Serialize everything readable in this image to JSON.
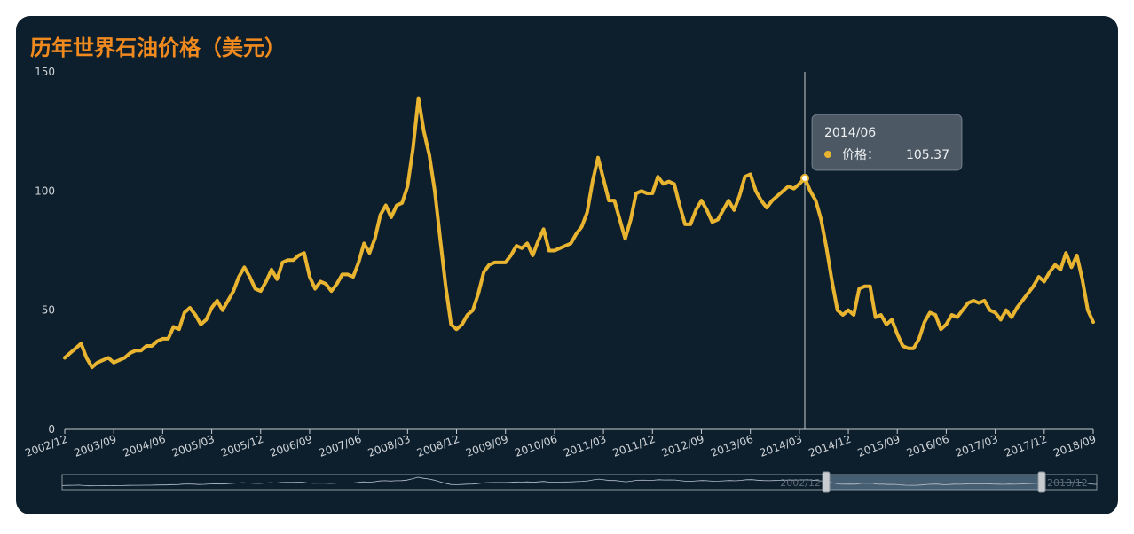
{
  "chart_data": {
    "type": "line",
    "title": "历年世界石油价格（美元）",
    "categories": [
      "2002/12",
      null,
      null,
      null,
      null,
      null,
      null,
      null,
      null,
      "2003/09",
      null,
      null,
      null,
      null,
      null,
      null,
      null,
      null,
      "2004/06",
      null,
      null,
      null,
      null,
      null,
      null,
      null,
      null,
      "2005/03",
      null,
      null,
      null,
      null,
      null,
      null,
      null,
      null,
      "2005/12",
      null,
      null,
      null,
      null,
      null,
      null,
      null,
      null,
      "2006/09",
      null,
      null,
      null,
      null,
      null,
      null,
      null,
      null,
      "2007/06",
      null,
      null,
      null,
      null,
      null,
      null,
      null,
      null,
      "2008/03",
      null,
      null,
      null,
      null,
      null,
      null,
      null,
      null,
      "2008/12",
      null,
      null,
      null,
      null,
      null,
      null,
      null,
      null,
      "2009/09",
      null,
      null,
      null,
      null,
      null,
      null,
      null,
      null,
      "2010/06",
      null,
      null,
      null,
      null,
      null,
      null,
      null,
      null,
      "2011/03",
      null,
      null,
      null,
      null,
      null,
      null,
      null,
      null,
      "2011/12",
      null,
      null,
      null,
      null,
      null,
      null,
      null,
      null,
      "2012/09",
      null,
      null,
      null,
      null,
      null,
      null,
      null,
      null,
      "2013/06",
      null,
      null,
      null,
      null,
      null,
      null,
      null,
      null,
      "2014/03",
      "2014/06",
      null,
      null,
      null,
      null,
      null,
      null,
      null,
      "2014/12",
      null,
      null,
      null,
      null,
      null,
      null,
      null,
      null,
      "2015/09",
      null,
      null,
      null,
      null,
      null,
      null,
      null,
      null,
      "2016/06",
      null,
      null,
      null,
      null,
      null,
      null,
      null,
      null,
      "2017/03",
      null,
      null,
      null,
      null,
      null,
      null,
      null,
      null,
      "2017/12",
      null,
      null,
      null,
      null,
      null,
      null,
      null,
      null,
      "2018/09"
    ],
    "series": [
      {
        "name": "价格：",
        "color": "#e9b531",
        "values": [
          30,
          32,
          34,
          36,
          30,
          26,
          28,
          29,
          30,
          28,
          29,
          30,
          32,
          33,
          33,
          35,
          35,
          37,
          38,
          38,
          43,
          42,
          49,
          51,
          48,
          44,
          46,
          51,
          54,
          50,
          54,
          58,
          64,
          68,
          64,
          59,
          58,
          62,
          67,
          63,
          70,
          71,
          71,
          73,
          74,
          64,
          59,
          62,
          61,
          58,
          61,
          65,
          65,
          64,
          70,
          78,
          74,
          80,
          90,
          94,
          89,
          94,
          95,
          102,
          118,
          139,
          125,
          115,
          100,
          80,
          60,
          44,
          42,
          44,
          48,
          50,
          57,
          66,
          69,
          70,
          70,
          70,
          73,
          77,
          76,
          78,
          73,
          79,
          84,
          75,
          75,
          76,
          77,
          78,
          82,
          85,
          91,
          104,
          114,
          105,
          96,
          96,
          88,
          80,
          88,
          99,
          100,
          99,
          99,
          106,
          103,
          104,
          103,
          94,
          86,
          86,
          92,
          96,
          92,
          87,
          88,
          92,
          96,
          92,
          98,
          106,
          107,
          100,
          96,
          93,
          96,
          98,
          100,
          102,
          101,
          103,
          105.37,
          100,
          96,
          88,
          76,
          62,
          50,
          48,
          50,
          48,
          59,
          60,
          60,
          47,
          48,
          44,
          46,
          40,
          35,
          34,
          34,
          38,
          45,
          49,
          48,
          42,
          44,
          48,
          47,
          50,
          53,
          54,
          53,
          54,
          50,
          49,
          46,
          50,
          47,
          51,
          54,
          57,
          60,
          64,
          62,
          66,
          69,
          67,
          74,
          68,
          73,
          63,
          50,
          45
        ]
      }
    ],
    "ylim": [
      0,
      150
    ],
    "yticks": [
      0,
      50,
      100,
      150
    ],
    "grid": false,
    "data_zoom": {
      "start_label": "2002/12",
      "end_label": "2018/12"
    }
  }
}
